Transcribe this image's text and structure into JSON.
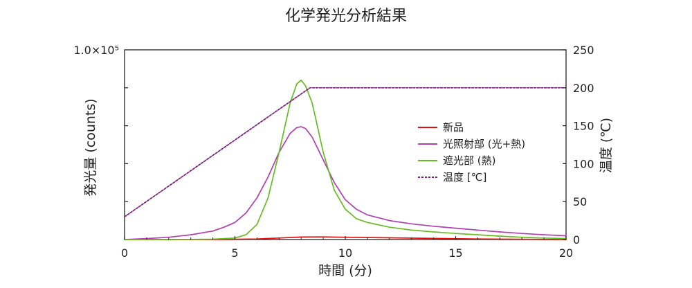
{
  "chart_data": {
    "type": "line",
    "title": "化学発光分析結果",
    "xlabel": "時間 (分)",
    "ylabel": "発光量 (counts)",
    "y2label": "温度 (℃)",
    "xlim": [
      0,
      20
    ],
    "ylim": [
      0,
      100000
    ],
    "y2lim": [
      0,
      250
    ],
    "x_ticks": [
      "0",
      "5",
      "10",
      "15",
      "20"
    ],
    "y_top_label": "1.0×10⁵",
    "y2_ticks": [
      "0",
      "50",
      "100",
      "150",
      "200",
      "250"
    ],
    "grid": false,
    "legend_position": "center-right",
    "series": [
      {
        "name": "新品",
        "color": "#e01010",
        "dash": false,
        "axis": "left",
        "x": [
          0,
          2,
          4,
          6,
          7,
          8,
          9,
          10,
          12,
          14,
          16,
          18,
          20
        ],
        "y": [
          0,
          0,
          0,
          300,
          800,
          1300,
          1400,
          1200,
          900,
          600,
          300,
          150,
          0
        ]
      },
      {
        "name": "光照射部 (光+熱)",
        "color": "#b040b0",
        "dash": false,
        "axis": "left",
        "x": [
          0,
          1,
          2,
          3,
          4,
          4.5,
          5,
          5.5,
          6,
          6.5,
          7,
          7.5,
          7.8,
          8,
          8.2,
          8.5,
          9,
          9.5,
          10,
          10.5,
          11,
          12,
          13,
          14,
          15,
          16,
          17,
          18,
          19,
          20
        ],
        "y": [
          0,
          500,
          1200,
          2500,
          4500,
          6500,
          9000,
          14000,
          22000,
          33000,
          46000,
          56000,
          59000,
          59500,
          58500,
          54000,
          42000,
          30000,
          21000,
          16000,
          13000,
          10000,
          8300,
          7000,
          6000,
          5000,
          4000,
          3200,
          2500,
          2000
        ]
      },
      {
        "name": "遮光部 (熱)",
        "color": "#66bb22",
        "dash": false,
        "axis": "left",
        "x": [
          0,
          2,
          4,
          5,
          5.5,
          6,
          6.5,
          7,
          7.5,
          7.8,
          8,
          8.2,
          8.5,
          9,
          9.5,
          10,
          10.5,
          11,
          12,
          13,
          14,
          15,
          16,
          17,
          18,
          19,
          20
        ],
        "y": [
          0,
          0,
          200,
          800,
          2500,
          8000,
          22000,
          46000,
          72000,
          82000,
          84000,
          81000,
          72000,
          46000,
          26000,
          16000,
          11000,
          9000,
          6500,
          5000,
          4000,
          3200,
          2500,
          1800,
          1200,
          800,
          500
        ]
      },
      {
        "name": "温度 [℃]",
        "color": "#7a1a7a",
        "dash": true,
        "axis": "right",
        "x": [
          0,
          8.4,
          20
        ],
        "y": [
          30,
          200,
          200
        ]
      }
    ]
  }
}
